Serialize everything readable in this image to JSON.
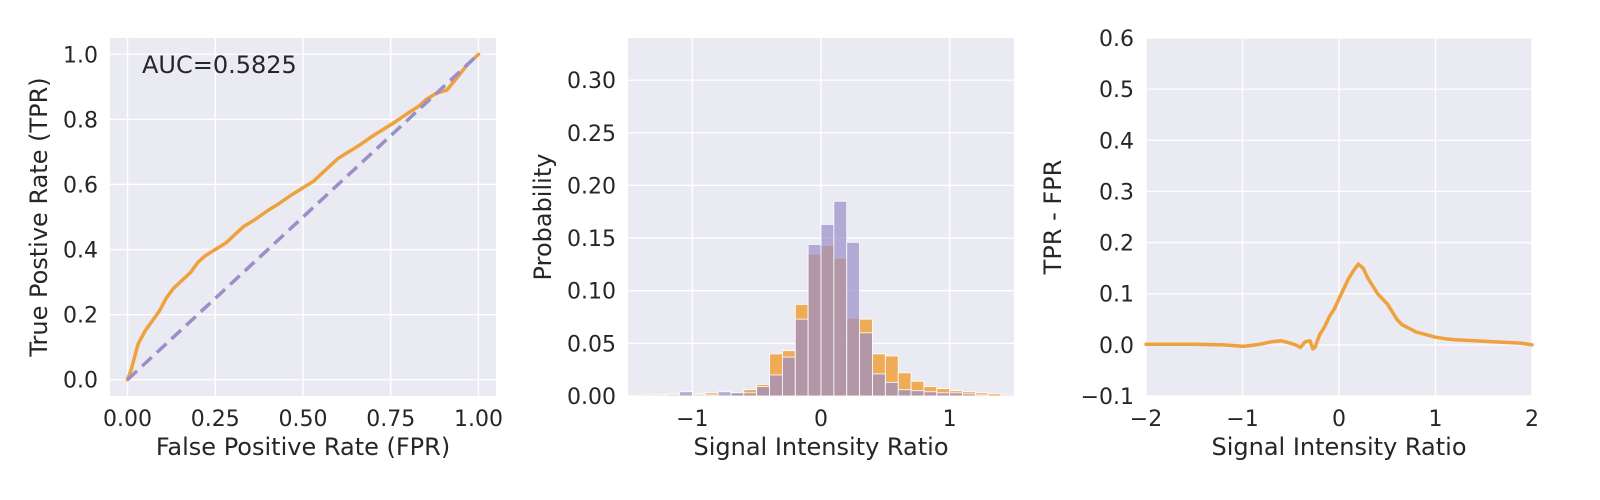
{
  "colors": {
    "orange": "#eea13c",
    "purple": "#9a8fc8",
    "background": "#eaeaf2"
  },
  "chart_data": [
    {
      "type": "line",
      "title": "",
      "xlabel": "False Positive Rate (FPR)",
      "ylabel": "True Postive Rate (TPR)",
      "annotation": "AUC=0.5825",
      "xlim": [
        -0.05,
        1.05
      ],
      "ylim": [
        -0.05,
        1.05
      ],
      "xticks": [
        0,
        0.25,
        0.5,
        0.75,
        1.0
      ],
      "xtick_labels": [
        "0.00",
        "0.25",
        "0.50",
        "0.75",
        "1.00"
      ],
      "yticks": [
        0,
        0.2,
        0.4,
        0.6,
        0.8,
        1.0
      ],
      "ytick_labels": [
        "0.0",
        "0.2",
        "0.4",
        "0.6",
        "0.8",
        "1.0"
      ],
      "grid": true,
      "series": [
        {
          "color": "#eea13c",
          "style": "solid",
          "x": [
            0,
            0.01,
            0.02,
            0.03,
            0.05,
            0.07,
            0.09,
            0.11,
            0.13,
            0.15,
            0.18,
            0.2,
            0.22,
            0.25,
            0.28,
            0.3,
            0.33,
            0.36,
            0.4,
            0.43,
            0.47,
            0.5,
            0.53,
            0.55,
            0.58,
            0.6,
            0.63,
            0.66,
            0.7,
            0.73,
            0.76,
            0.8,
            0.83,
            0.85,
            0.88,
            0.91,
            0.94,
            0.97,
            1.0
          ],
          "y": [
            0,
            0.03,
            0.07,
            0.11,
            0.15,
            0.18,
            0.21,
            0.25,
            0.28,
            0.3,
            0.33,
            0.36,
            0.38,
            0.4,
            0.42,
            0.44,
            0.47,
            0.49,
            0.52,
            0.54,
            0.57,
            0.59,
            0.61,
            0.63,
            0.66,
            0.68,
            0.7,
            0.72,
            0.75,
            0.77,
            0.79,
            0.82,
            0.84,
            0.86,
            0.88,
            0.89,
            0.93,
            0.97,
            1.0
          ]
        },
        {
          "color": "#9a8fc8",
          "style": "dashed",
          "x": [
            0,
            1
          ],
          "y": [
            0,
            1
          ]
        }
      ]
    },
    {
      "type": "bar",
      "title": "",
      "xlabel": "Signal Intensity Ratio",
      "ylabel": "Probability",
      "xlim": [
        -1.5,
        1.5
      ],
      "ylim": [
        0,
        0.34
      ],
      "xticks": [
        -1,
        0,
        1
      ],
      "xtick_labels": [
        "−1",
        "0",
        "1"
      ],
      "yticks": [
        0,
        0.05,
        0.1,
        0.15,
        0.2,
        0.25,
        0.3
      ],
      "ytick_labels": [
        "0.00",
        "0.05",
        "0.10",
        "0.15",
        "0.20",
        "0.25",
        "0.30"
      ],
      "grid": true,
      "bin_edges": [
        -1.6,
        -1.5,
        -1.4,
        -1.3,
        -1.2,
        -1.1,
        -1.0,
        -0.9,
        -0.8,
        -0.7,
        -0.6,
        -0.5,
        -0.4,
        -0.3,
        -0.2,
        -0.1,
        0.0,
        0.1,
        0.2,
        0.3,
        0.4,
        0.5,
        0.6,
        0.7,
        0.8,
        0.9,
        1.0,
        1.1,
        1.2,
        1.3,
        1.4,
        1.5
      ],
      "series": [
        {
          "color": "#eea13c",
          "values": [
            0,
            0,
            0.001,
            0.001,
            0.002,
            0.001,
            0.002,
            0.003,
            0.001,
            0.003,
            0.006,
            0.011,
            0.04,
            0.043,
            0.087,
            0.135,
            0.143,
            0.131,
            0.074,
            0.073,
            0.04,
            0.038,
            0.022,
            0.014,
            0.009,
            0.007,
            0.005,
            0.004,
            0.003,
            0.002,
            0.001
          ]
        },
        {
          "color": "#9a8fc8",
          "values": [
            0,
            0,
            0,
            0.001,
            0.001,
            0.004,
            0.001,
            0.001,
            0.004,
            0.003,
            0.003,
            0.009,
            0.02,
            0.037,
            0.073,
            0.144,
            0.163,
            0.185,
            0.146,
            0.06,
            0.021,
            0.013,
            0.006,
            0.005,
            0.004,
            0.003,
            0.003,
            0.002,
            0.001,
            0,
            0.001
          ]
        }
      ]
    },
    {
      "type": "line",
      "title": "",
      "xlabel": "Signal Intensity Ratio",
      "ylabel": "TPR - FPR",
      "xlim": [
        -2,
        2
      ],
      "ylim": [
        -0.1,
        0.6
      ],
      "xticks": [
        -2,
        -1,
        0,
        1,
        2
      ],
      "xtick_labels": [
        "−2",
        "−1",
        "0",
        "1",
        "2"
      ],
      "yticks": [
        -0.1,
        0,
        0.1,
        0.2,
        0.3,
        0.4,
        0.5,
        0.6
      ],
      "ytick_labels": [
        "−0.1",
        "0.0",
        "0.1",
        "0.2",
        "0.3",
        "0.4",
        "0.5",
        "0.6"
      ],
      "grid": true,
      "series": [
        {
          "color": "#eea13c",
          "x": [
            -2,
            -1.5,
            -1.2,
            -1.05,
            -1.0,
            -0.9,
            -0.8,
            -0.7,
            -0.6,
            -0.5,
            -0.45,
            -0.4,
            -0.35,
            -0.3,
            -0.27,
            -0.25,
            -0.2,
            -0.15,
            -0.1,
            -0.05,
            0,
            0.05,
            0.1,
            0.15,
            0.2,
            0.25,
            0.3,
            0.35,
            0.4,
            0.45,
            0.5,
            0.55,
            0.6,
            0.65,
            0.7,
            0.75,
            0.8,
            0.9,
            1.0,
            1.1,
            1.2,
            1.3,
            1.4,
            1.5,
            1.6,
            1.7,
            1.8,
            1.9,
            2.0
          ],
          "y": [
            0.001,
            0.001,
            0.0,
            -0.002,
            -0.003,
            -0.001,
            0.002,
            0.006,
            0.008,
            0.003,
            0.0,
            -0.005,
            0.006,
            0.008,
            -0.008,
            -0.005,
            0.02,
            0.035,
            0.055,
            0.07,
            0.09,
            0.11,
            0.13,
            0.145,
            0.158,
            0.15,
            0.13,
            0.115,
            0.1,
            0.09,
            0.08,
            0.065,
            0.05,
            0.04,
            0.035,
            0.03,
            0.025,
            0.02,
            0.015,
            0.012,
            0.01,
            0.009,
            0.008,
            0.007,
            0.006,
            0.005,
            0.004,
            0.003,
            0.0
          ]
        }
      ]
    }
  ]
}
